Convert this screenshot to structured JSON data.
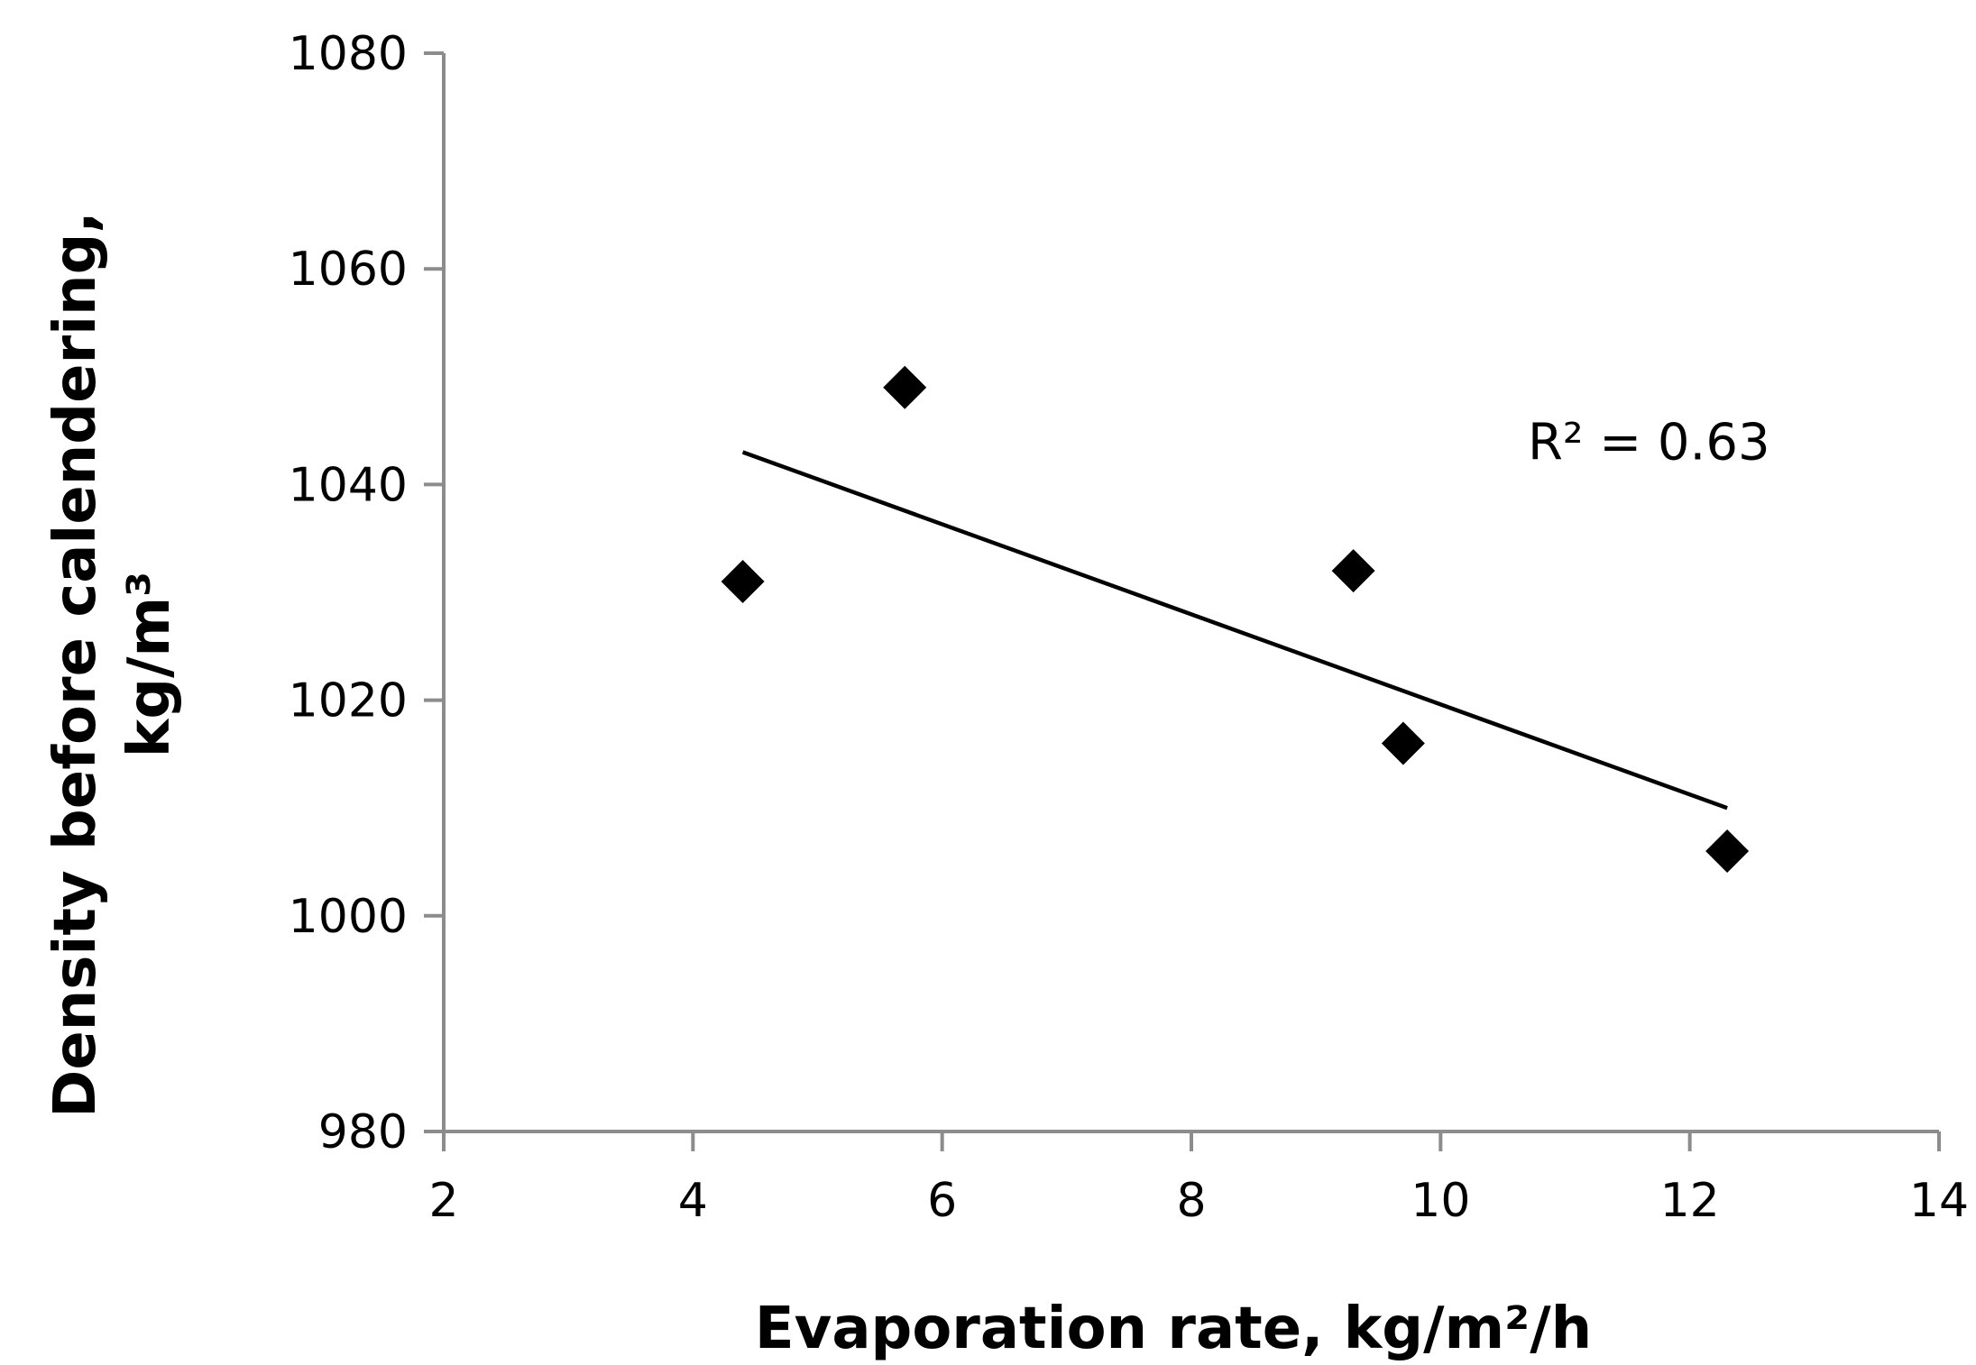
{
  "chart_data": {
    "type": "scatter",
    "title": "",
    "xlabel": "Evaporation rate, kg/m²/h",
    "ylabel_line1": "Density before calendering,",
    "ylabel_line2": "kg/m³",
    "xlim": [
      2,
      14
    ],
    "ylim": [
      980,
      1080
    ],
    "x_ticks": [
      2,
      4,
      6,
      8,
      10,
      12,
      14
    ],
    "y_ticks": [
      980,
      1000,
      1020,
      1040,
      1060,
      1080
    ],
    "series": [
      {
        "marker": "diamond",
        "color": "#000000",
        "points": [
          {
            "x": 4.4,
            "y": 1031
          },
          {
            "x": 5.7,
            "y": 1049
          },
          {
            "x": 9.3,
            "y": 1032
          },
          {
            "x": 9.7,
            "y": 1016
          },
          {
            "x": 12.3,
            "y": 1006
          }
        ]
      }
    ],
    "trendline": {
      "type": "linear",
      "x_start": 4.4,
      "y_start": 1043,
      "x_end": 12.3,
      "y_end": 1010,
      "color": "#000000"
    },
    "annotations": [
      {
        "text": "R² = 0.63",
        "x": 10.7,
        "y": 1044
      }
    ],
    "grid": false,
    "legend": "none"
  }
}
